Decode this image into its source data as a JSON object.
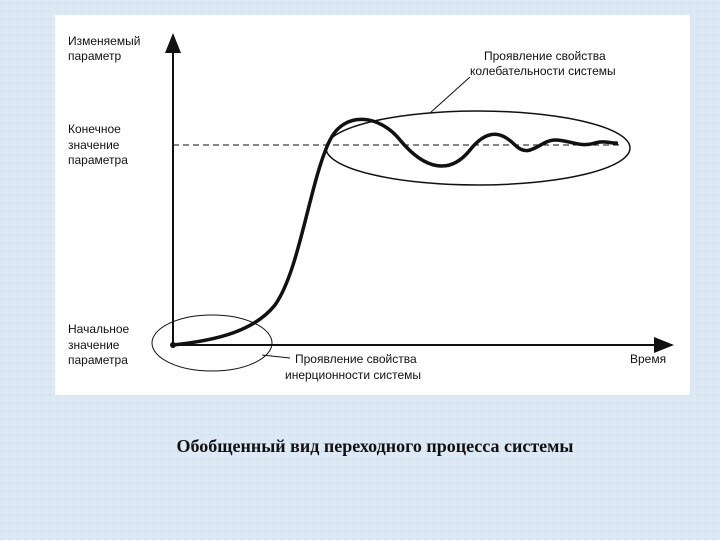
{
  "diagram": {
    "y_axis_label": [
      "Изменяемый",
      "параметр"
    ],
    "x_axis_label": "Время",
    "final_value_label": [
      "Конечное",
      "значение",
      "параметра"
    ],
    "initial_value_label": [
      "Начальное",
      "значение",
      "параметра"
    ],
    "oscillation_note": [
      "Проявление свойства",
      "колебательности системы"
    ],
    "inertia_note": [
      "Проявление свойства",
      "инерционности системы"
    ]
  },
  "caption": "Обобщенный вид переходного процесса системы"
}
